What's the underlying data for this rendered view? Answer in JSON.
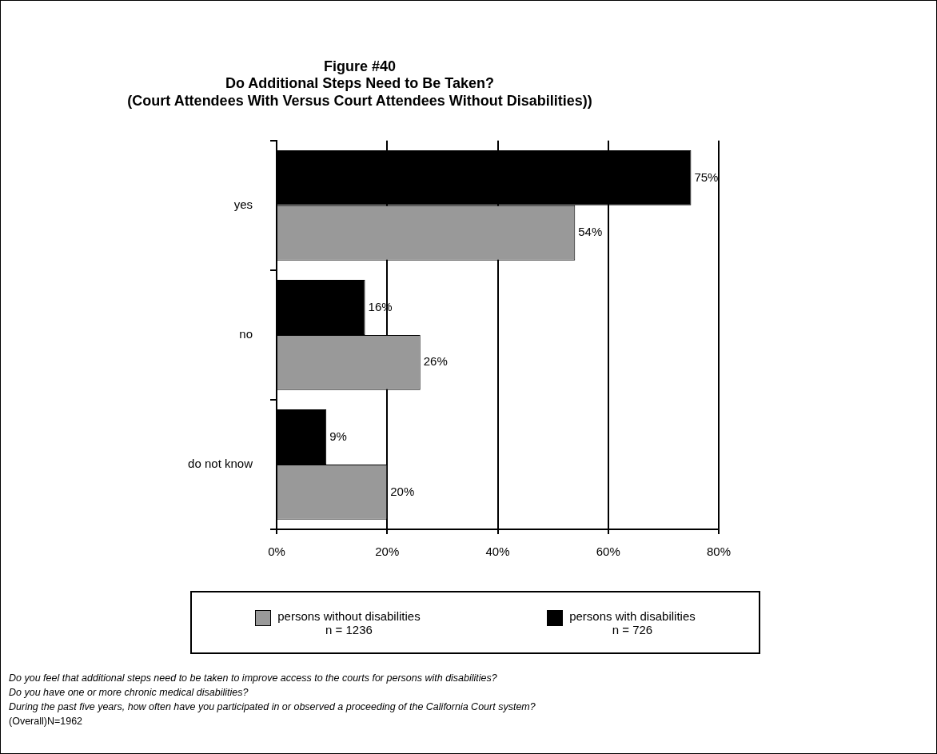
{
  "chart_data": {
    "type": "bar",
    "orientation": "horizontal",
    "title": "Figure #40\nDo Additional Steps Need to Be Taken?\n(Court Attendees With Versus Court Attendees Without Disabilities))",
    "categories": [
      "yes",
      "no",
      "do not know"
    ],
    "series": [
      {
        "name": "persons without disabilities\nn = 1236",
        "color": "#999999",
        "values": [
          54,
          26,
          20
        ],
        "value_labels": [
          "54%",
          "26%",
          "20%"
        ]
      },
      {
        "name": "persons with disabilities\nn = 726",
        "color": "#000000",
        "values": [
          75,
          16,
          9
        ],
        "value_labels": [
          "75%",
          "16%",
          "9%"
        ]
      }
    ],
    "xlim": [
      0,
      80
    ],
    "xticks": [
      {
        "value": 0,
        "label": "0%"
      },
      {
        "value": 20,
        "label": "20%"
      },
      {
        "value": 40,
        "label": "40%"
      },
      {
        "value": 60,
        "label": "60%"
      },
      {
        "value": 80,
        "label": "80%"
      }
    ],
    "grid": "x",
    "legend": "bottom",
    "annotations": [
      "Do you feel that additional steps need to be taken to improve access to the courts for persons with disabilities?",
      "Do you have one or more chronic medical disabilities?",
      "During the past five years, how often have you participated in or observed a proceeding of the California Court system?",
      "(Overall)N=1962"
    ]
  }
}
